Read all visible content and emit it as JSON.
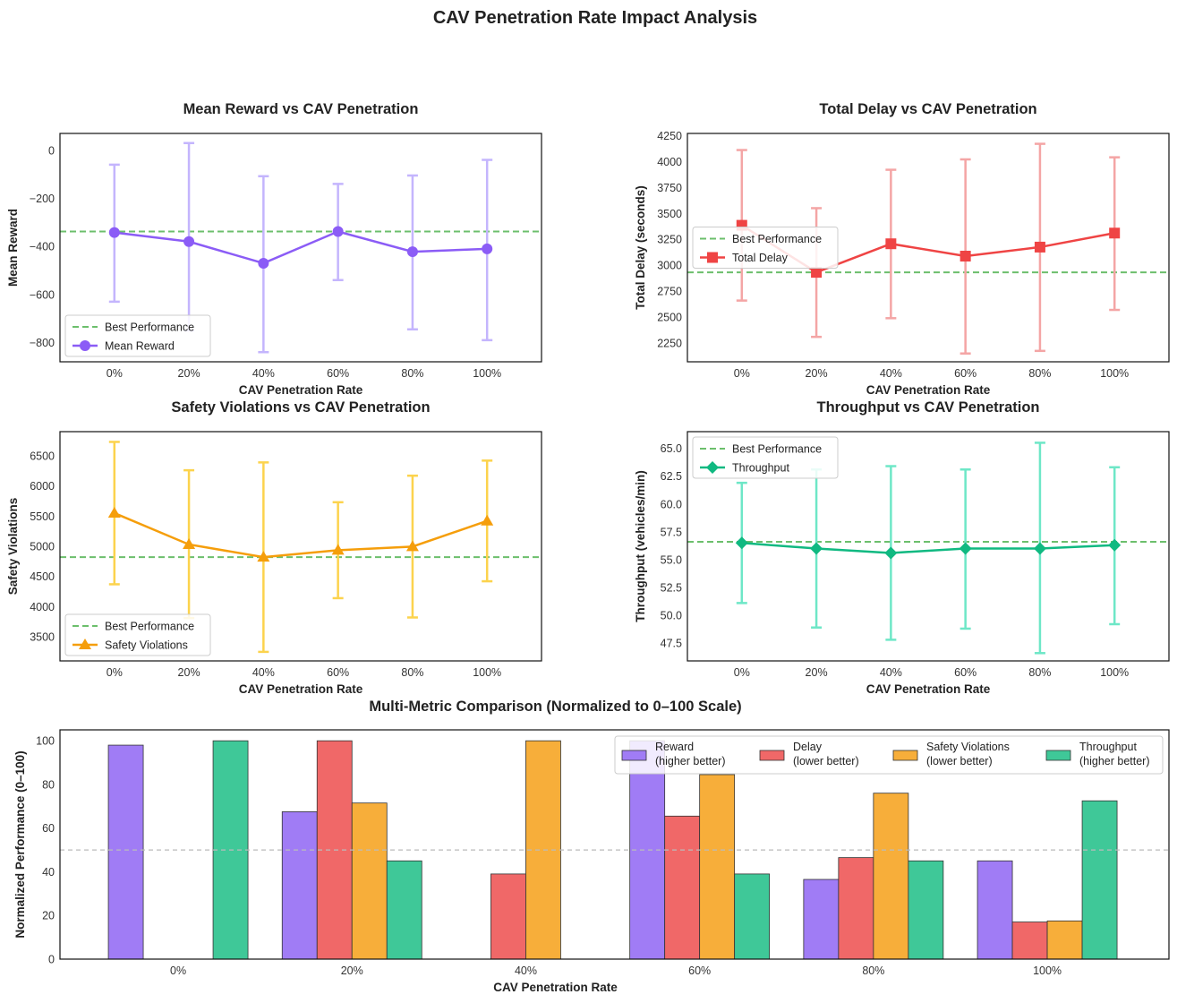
{
  "figure_title": "CAV Penetration Rate Impact Analysis",
  "colors": {
    "reward": "#8b5cf6",
    "reward_err": "#c4b5fd",
    "delay": "#ef4444",
    "delay_err": "#f4a5a5",
    "safety": "#f59e0b",
    "safety_err": "#fcd34d",
    "throughput": "#10b981",
    "throughput_err": "#6ee7c7",
    "best": "#6cbf6c",
    "bar_reward": "#a07cf5",
    "bar_delay": "#f06868",
    "bar_safety": "#f7ae3a",
    "bar_throughput": "#3fc898"
  },
  "chart_data": [
    {
      "type": "line",
      "title": "Mean Reward vs CAV Penetration",
      "xlabel": "CAV Penetration Rate",
      "ylabel": "Mean Reward",
      "categories": [
        "0%",
        "20%",
        "40%",
        "60%",
        "80%",
        "100%"
      ],
      "series": [
        {
          "name": "Mean Reward",
          "values": [
            -342,
            -380,
            -470,
            -338,
            -422,
            -410
          ],
          "err_low": [
            -630,
            -750,
            -840,
            -540,
            -745,
            -790
          ],
          "err_high": [
            -60,
            30,
            -108,
            -140,
            -105,
            -40
          ]
        }
      ],
      "best_line": {
        "name": "Best Performance",
        "value": -338
      },
      "ylim": [
        -880,
        70
      ],
      "yticks": [
        0,
        -200,
        -400,
        -600,
        -800
      ],
      "yticklabels": [
        "0",
        "−200",
        "−400",
        "−600",
        "−800"
      ],
      "marker": "circle",
      "legend_position": "lower left"
    },
    {
      "type": "line",
      "title": "Total Delay vs CAV Penetration",
      "xlabel": "CAV Penetration Rate",
      "ylabel": "Total Delay (seconds)",
      "categories": [
        "0%",
        "20%",
        "40%",
        "60%",
        "80%",
        "100%"
      ],
      "series": [
        {
          "name": "Total Delay",
          "values": [
            3385,
            2932,
            3207,
            3088,
            3175,
            3310
          ],
          "err_low": [
            2660,
            2310,
            2490,
            2150,
            2175,
            2570
          ],
          "err_high": [
            4110,
            3550,
            3920,
            4020,
            4170,
            4040
          ]
        }
      ],
      "best_line": {
        "name": "Best Performance",
        "value": 2932
      },
      "ylim": [
        2070,
        4270
      ],
      "yticks": [
        2250,
        2500,
        2750,
        3000,
        3250,
        3500,
        3750,
        4000,
        4250
      ],
      "yticklabels": [
        "2250",
        "2500",
        "2750",
        "3000",
        "3250",
        "3500",
        "3750",
        "4000",
        "4250"
      ],
      "marker": "square",
      "legend_position": "center left"
    },
    {
      "type": "line",
      "title": "Safety Violations vs CAV Penetration",
      "xlabel": "CAV Penetration Rate",
      "ylabel": "Safety Violations",
      "categories": [
        "0%",
        "20%",
        "40%",
        "60%",
        "80%",
        "100%"
      ],
      "series": [
        {
          "name": "Safety Violations",
          "values": [
            5550,
            5030,
            4820,
            4935,
            4995,
            5420
          ],
          "err_low": [
            4370,
            3810,
            3250,
            4140,
            3820,
            4420
          ],
          "err_high": [
            6730,
            6260,
            6390,
            5730,
            6170,
            6420
          ]
        }
      ],
      "best_line": {
        "name": "Best Performance",
        "value": 4820
      },
      "ylim": [
        3100,
        6900
      ],
      "yticks": [
        3500,
        4000,
        4500,
        5000,
        5500,
        6000,
        6500
      ],
      "yticklabels": [
        "3500",
        "4000",
        "4500",
        "5000",
        "5500",
        "6000",
        "6500"
      ],
      "marker": "triangle",
      "legend_position": "lower left"
    },
    {
      "type": "line",
      "title": "Throughput vs CAV Penetration",
      "xlabel": "CAV Penetration Rate",
      "ylabel": "Throughput (vehicles/min)",
      "categories": [
        "0%",
        "20%",
        "40%",
        "60%",
        "80%",
        "100%"
      ],
      "series": [
        {
          "name": "Throughput",
          "values": [
            56.5,
            56.0,
            55.6,
            56.0,
            56.0,
            56.3
          ],
          "err_low": [
            51.1,
            48.9,
            47.8,
            48.8,
            46.6,
            49.2
          ],
          "err_high": [
            61.9,
            63.1,
            63.4,
            63.1,
            65.5,
            63.3
          ]
        }
      ],
      "best_line": {
        "name": "Best Performance",
        "value": 56.6
      },
      "ylim": [
        45.9,
        66.5
      ],
      "yticks": [
        47.5,
        50.0,
        52.5,
        55.0,
        57.5,
        60.0,
        62.5,
        65.0
      ],
      "yticklabels": [
        "47.5",
        "50.0",
        "52.5",
        "55.0",
        "57.5",
        "60.0",
        "62.5",
        "65.0"
      ],
      "marker": "diamond",
      "legend_position": "upper left"
    },
    {
      "type": "bar",
      "title": "Multi-Metric Comparison (Normalized to 0–100 Scale)",
      "xlabel": "CAV Penetration Rate",
      "ylabel": "Normalized Performance (0–100)",
      "categories": [
        "0%",
        "20%",
        "40%",
        "60%",
        "80%",
        "100%"
      ],
      "series": [
        {
          "name": "Reward\n(higher better)",
          "values": [
            98,
            67.5,
            0,
            100,
            36.5,
            45
          ]
        },
        {
          "name": "Delay\n(lower better)",
          "values": [
            0,
            100,
            39,
            65.5,
            46.5,
            17
          ]
        },
        {
          "name": "Safety Violations\n(lower better)",
          "values": [
            0,
            71.5,
            100,
            84.5,
            76,
            17.5
          ]
        },
        {
          "name": "Throughput\n(higher better)",
          "values": [
            100,
            45,
            0,
            39,
            45,
            72.5
          ]
        }
      ],
      "reference_line": 50,
      "ylim": [
        0,
        105
      ],
      "yticks": [
        0,
        20,
        40,
        60,
        80,
        100
      ],
      "yticklabels": [
        "0",
        "20",
        "40",
        "60",
        "80",
        "100"
      ],
      "legend_position": "upper right"
    }
  ]
}
